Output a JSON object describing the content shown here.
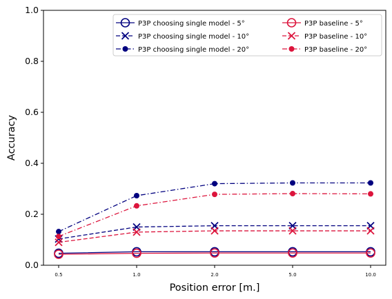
{
  "chart_data": {
    "type": "line",
    "x": [
      "0.5",
      "1.0",
      "2.0",
      "5.0",
      "10.0"
    ],
    "xlabel": "Position error [m.]",
    "ylabel": "Accuracy",
    "ylim": [
      0.0,
      1.0
    ],
    "yticks": [
      "0.0",
      "0.2",
      "0.4",
      "0.6",
      "0.8",
      "1.0"
    ],
    "grid": false,
    "legend_position": "top-right",
    "colors": {
      "single": "#00007f",
      "baseline": "#dc143c"
    },
    "series": [
      {
        "name": "P3P choosing single model - 5°",
        "group": "single",
        "style": "solid",
        "marker": "open-circle",
        "values": [
          0.047,
          0.053,
          0.053,
          0.053,
          0.053
        ]
      },
      {
        "name": "P3P choosing single model - 10°",
        "group": "single",
        "style": "dashed",
        "marker": "x",
        "values": [
          0.103,
          0.15,
          0.155,
          0.155,
          0.155
        ]
      },
      {
        "name": "P3P choosing single model - 20°",
        "group": "single",
        "style": "dashdot",
        "marker": "dot",
        "values": [
          0.132,
          0.273,
          0.32,
          0.323,
          0.323
        ]
      },
      {
        "name": "P3P baseline - 5°",
        "group": "baseline",
        "style": "solid",
        "marker": "open-circle",
        "values": [
          0.043,
          0.047,
          0.048,
          0.048,
          0.048
        ]
      },
      {
        "name": "P3P baseline - 10°",
        "group": "baseline",
        "style": "dashed",
        "marker": "x",
        "values": [
          0.09,
          0.13,
          0.135,
          0.135,
          0.135
        ]
      },
      {
        "name": "P3P baseline - 20°",
        "group": "baseline",
        "style": "dashdot",
        "marker": "dot",
        "values": [
          0.113,
          0.233,
          0.278,
          0.281,
          0.28
        ]
      }
    ]
  }
}
